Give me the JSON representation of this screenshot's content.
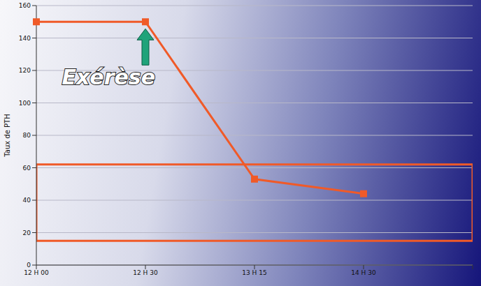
{
  "chart_data": {
    "type": "line",
    "categories": [
      "12 H 00",
      "12 H 30",
      "13 H 15",
      "14 H 30",
      null
    ],
    "values": [
      150,
      150,
      53,
      44,
      null
    ],
    "color": "#f05a28",
    "marker": "square",
    "ylabel": "Taux de PTH",
    "ylim": [
      0,
      160
    ],
    "yticks": [
      0,
      20,
      40,
      60,
      80,
      100,
      120,
      140,
      160
    ],
    "grid": true,
    "normal_range": [
      15,
      62
    ],
    "annotations": [
      {
        "text": "Exérèse",
        "x": "12 H 30"
      }
    ]
  }
}
